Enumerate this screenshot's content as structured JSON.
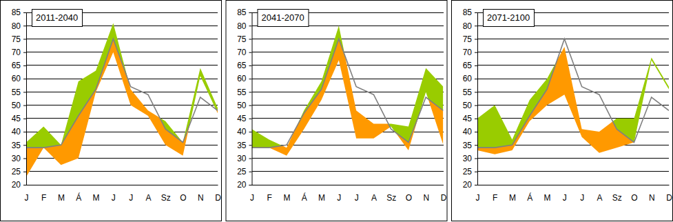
{
  "chart_data": [
    {
      "type": "range",
      "title": "2011-2040",
      "categories": [
        "J",
        "F",
        "M",
        "Á",
        "M",
        "J",
        "J",
        "A",
        "Sz",
        "O",
        "N",
        "D"
      ],
      "ylim": [
        20,
        85
      ],
      "yticks": [
        20,
        25,
        30,
        35,
        40,
        45,
        50,
        55,
        60,
        65,
        70,
        75,
        80,
        85
      ],
      "grid": true,
      "series": [
        {
          "type": "range",
          "colors": [
            "#99cc00",
            "#ff9900"
          ],
          "values": [
            36,
            42,
            35,
            59,
            63,
            81,
            56,
            48,
            44,
            36,
            64,
            49
          ],
          "low": [
            23,
            34,
            27.5,
            30,
            55,
            70,
            50,
            46,
            35,
            31,
            61,
            47
          ]
        },
        {
          "type": "line",
          "color": "#808080",
          "values": [
            34,
            34,
            35,
            46,
            56,
            75,
            57,
            54,
            41,
            36,
            53,
            48
          ]
        }
      ]
    },
    {
      "type": "range",
      "title": "2041-2070",
      "categories": [
        "J",
        "F",
        "M",
        "Á",
        "M",
        "J",
        "J",
        "A",
        "Sz",
        "O",
        "N",
        "D"
      ],
      "ylim": [
        20,
        85
      ],
      "yticks": [
        20,
        25,
        30,
        35,
        40,
        45,
        50,
        55,
        60,
        65,
        70,
        75,
        80,
        85
      ],
      "grid": true,
      "series": [
        {
          "type": "range",
          "colors": [
            "#99cc00",
            "#ff9900"
          ],
          "values": [
            41,
            37,
            34,
            48,
            59,
            80,
            48,
            43,
            43,
            42,
            64,
            57
          ],
          "low": [
            34,
            34,
            31,
            41,
            52,
            67,
            37.5,
            37.5,
            42,
            33,
            55,
            35
          ]
        },
        {
          "type": "line",
          "color": "#808080",
          "values": [
            34,
            34,
            35,
            47,
            56,
            75,
            57,
            54,
            41,
            36,
            53,
            48
          ]
        }
      ]
    },
    {
      "type": "range",
      "title": "2071-2100",
      "categories": [
        "J",
        "F",
        "M",
        "Á",
        "M",
        "J",
        "J",
        "A",
        "Sz",
        "O",
        "N",
        "D"
      ],
      "ylim": [
        20,
        85
      ],
      "yticks": [
        20,
        25,
        30,
        35,
        40,
        45,
        50,
        55,
        60,
        65,
        70,
        75,
        80,
        85
      ],
      "grid": true,
      "series": [
        {
          "type": "range",
          "colors": [
            "#99cc00",
            "#ff9900"
          ],
          "values": [
            45,
            50,
            37,
            52,
            60,
            72,
            41,
            40,
            45,
            45,
            68,
            57
          ],
          "low": [
            33,
            31.5,
            33,
            44,
            50,
            54,
            38,
            32,
            34,
            36,
            67,
            56
          ]
        },
        {
          "type": "line",
          "color": "#808080",
          "values": [
            34,
            34,
            35,
            46,
            56,
            75,
            57,
            54,
            41,
            36,
            53,
            48
          ]
        }
      ]
    }
  ]
}
